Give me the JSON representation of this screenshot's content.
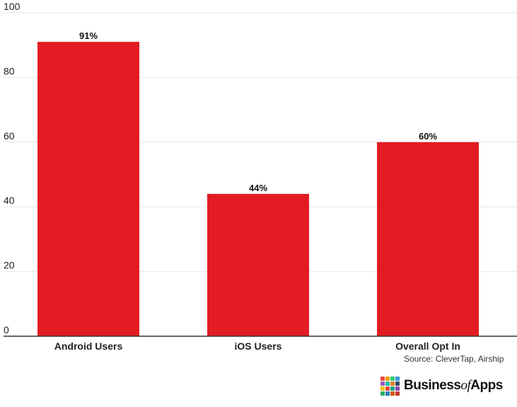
{
  "chart_data": {
    "type": "bar",
    "categories": [
      "Android Users",
      "iOS Users",
      "Overall Opt In"
    ],
    "values": [
      91,
      44,
      60
    ],
    "data_labels": [
      "91%",
      "44%",
      "60%"
    ],
    "yticks": [
      "0",
      "20",
      "40",
      "60",
      "80",
      "100"
    ],
    "ylim": [
      0,
      100
    ],
    "grid": true,
    "title": "",
    "xlabel": "",
    "ylabel": "",
    "bar_color": "#e31c23"
  },
  "source": "Source: CleverTap, Airship",
  "logo": {
    "part1": "Business",
    "part2": "of",
    "part3": "Apps",
    "colors": [
      "#e84c3d",
      "#f39c12",
      "#2ecc71",
      "#3498db",
      "#9b59b6",
      "#1abc9c",
      "#e67e22",
      "#34495e",
      "#f1c40f",
      "#e74c3c",
      "#16a085",
      "#8e44ad",
      "#27ae60",
      "#2980b9",
      "#d35400",
      "#c0392b"
    ]
  }
}
